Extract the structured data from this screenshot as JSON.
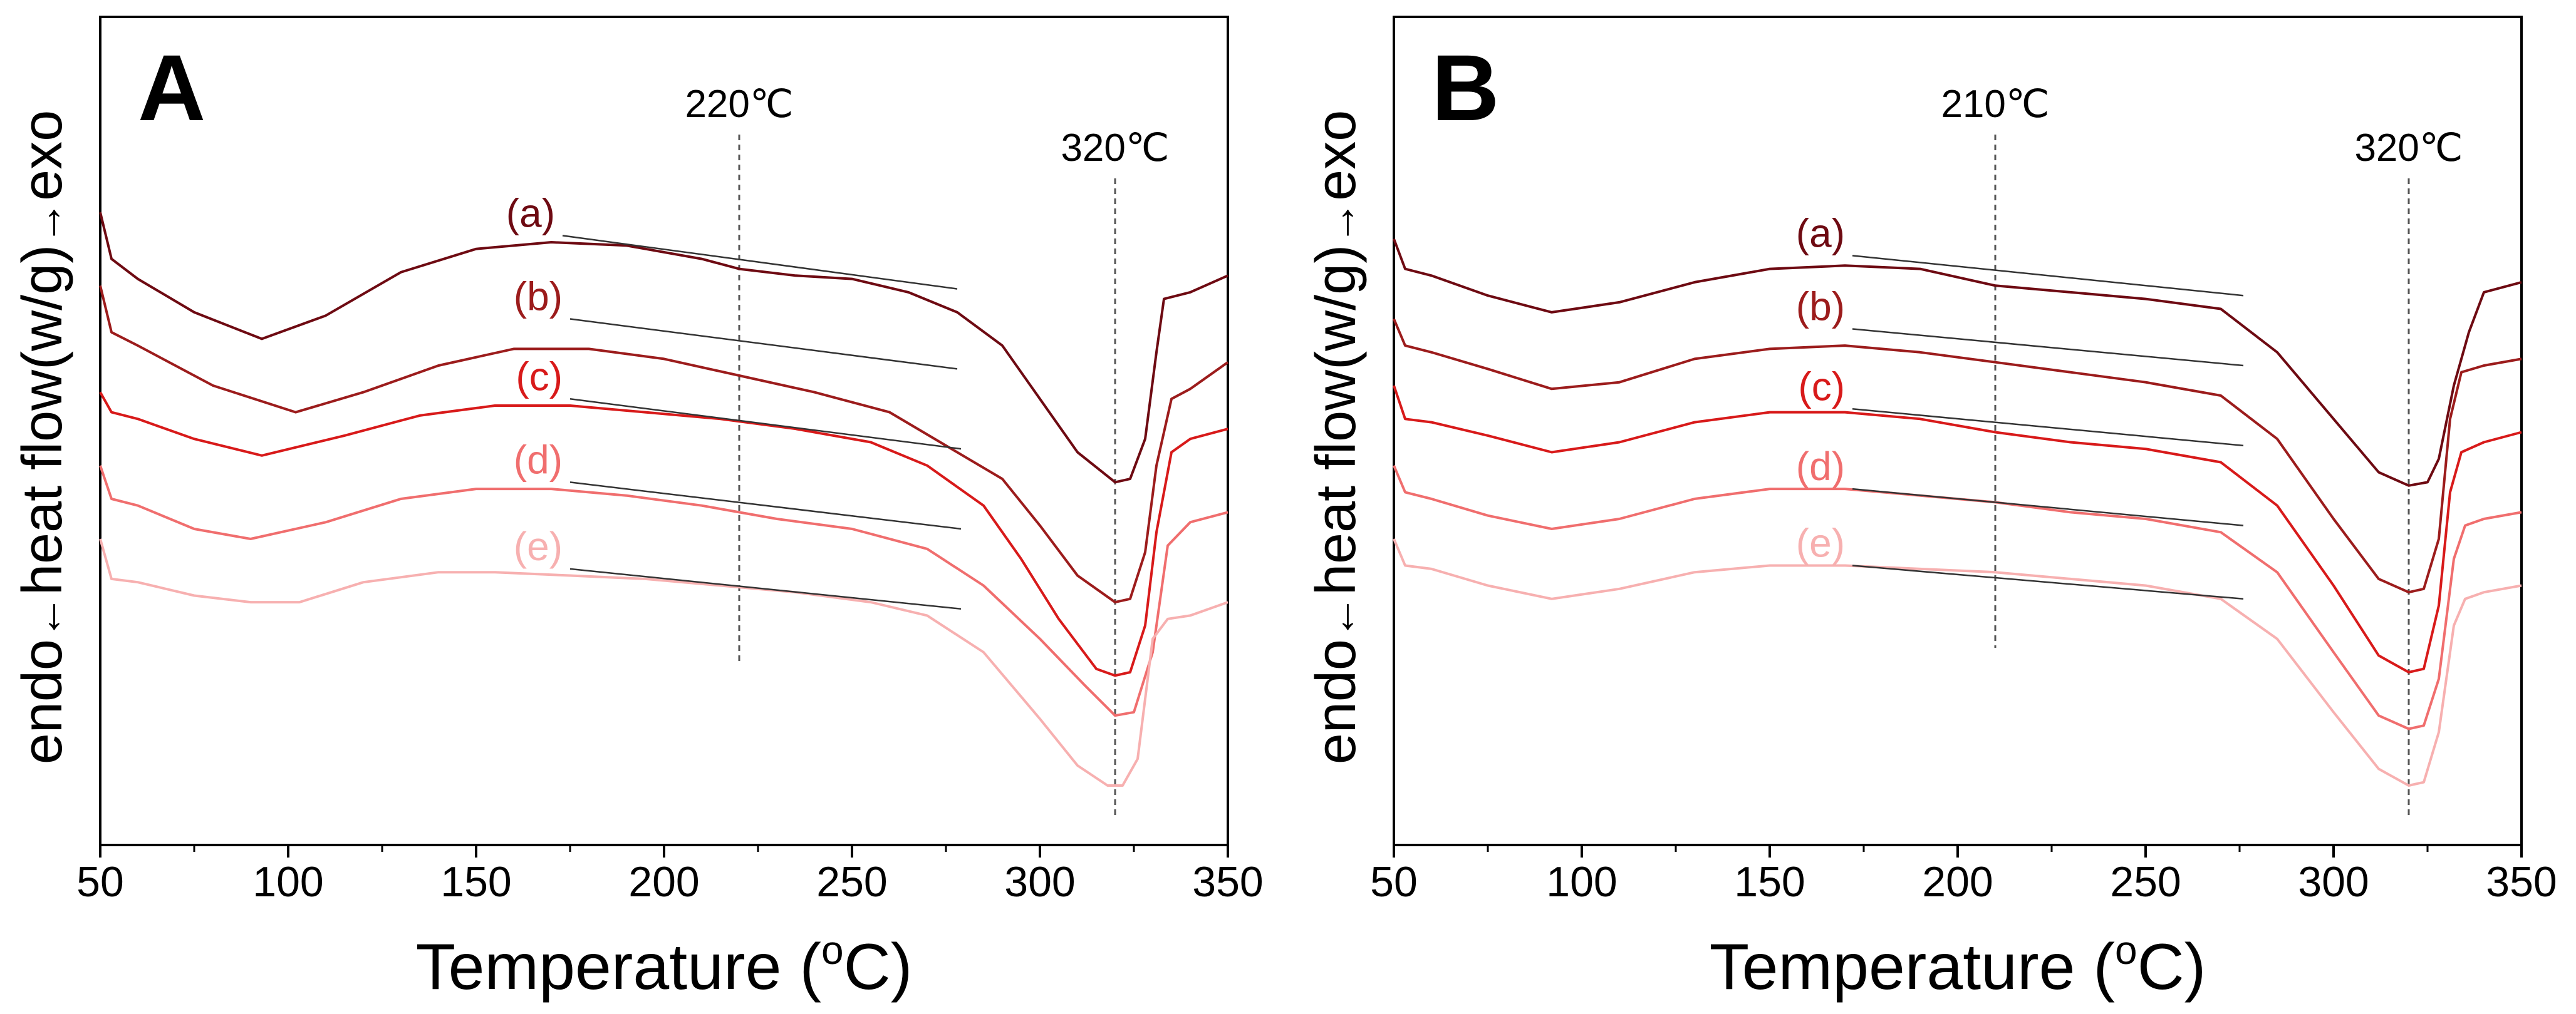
{
  "chart_data": [
    {
      "type": "line",
      "panel_label": "A",
      "xlabel": "Temperature (",
      "xlabel_sup": "o",
      "xlabel_tail": "C)",
      "ylabel": "endo←heat flow(w/g)→exo",
      "ylabel_parts": {
        "endo": "endo",
        "mid": "heat flow(w/g)",
        "exo": "exo"
      },
      "xlim": [
        50,
        350
      ],
      "xticks": [
        50,
        100,
        150,
        200,
        250,
        300,
        350
      ],
      "xtick_labels": [
        "50",
        "100",
        "150",
        "200",
        "250",
        "300",
        "350"
      ],
      "y_units": "arbitrary (stacked, offset)",
      "ylim": [
        0,
        100
      ],
      "grid": false,
      "legend": "inline series labels near x≈170",
      "markers": [
        {
          "x": 220,
          "label": "220℃"
        },
        {
          "x": 320,
          "label": "320℃"
        }
      ],
      "series": [
        {
          "name": "(a)",
          "color": "#6e0a12",
          "x": [
            50,
            53,
            60,
            75,
            93,
            110,
            130,
            150,
            170,
            190,
            210,
            220,
            235,
            250,
            265,
            278,
            290,
            300,
            310,
            320,
            324,
            328,
            331,
            333,
            340,
            350
          ],
          "y": [
            86,
            79,
            76,
            71,
            67,
            70.5,
            77,
            80.5,
            81.5,
            81,
            79,
            77.5,
            76.5,
            76,
            74,
            71,
            66,
            58,
            50,
            45.5,
            46,
            52,
            65,
            73,
            74,
            76.5
          ],
          "baseline": {
            "x": [
              173,
              278
            ],
            "y": [
              82.5,
              74.5
            ]
          }
        },
        {
          "name": "(b)",
          "color": "#9c1c1c",
          "x": [
            50,
            53,
            60,
            80,
            102,
            120,
            140,
            160,
            180,
            200,
            220,
            240,
            260,
            275,
            290,
            300,
            310,
            320,
            324,
            328,
            331,
            335,
            340,
            350
          ],
          "y": [
            75,
            68,
            66,
            60,
            56,
            59,
            63,
            65.5,
            65.5,
            64,
            61.5,
            59,
            56,
            51,
            46,
            39,
            31.5,
            27.5,
            28,
            35,
            48,
            58,
            59.5,
            63.5
          ],
          "baseline": {
            "x": [
              175,
              278
            ],
            "y": [
              70,
              62.5
            ]
          }
        },
        {
          "name": "(c)",
          "color": "#d81a1a",
          "x": [
            50,
            53,
            60,
            75,
            93,
            115,
            135,
            155,
            175,
            195,
            215,
            235,
            255,
            270,
            285,
            295,
            305,
            315,
            320,
            324,
            328,
            331,
            335,
            340,
            350
          ],
          "y": [
            59,
            56,
            55,
            52,
            49.5,
            52.5,
            55.5,
            57,
            57,
            56,
            55,
            53.5,
            51.5,
            48,
            42,
            34,
            25,
            17.5,
            16.5,
            17,
            24,
            38,
            50,
            52,
            53.5
          ],
          "baseline": {
            "x": [
              175,
              279
            ],
            "y": [
              58,
              50.5
            ]
          }
        },
        {
          "name": "(d)",
          "color": "#f06e6e",
          "x": [
            50,
            53,
            60,
            75,
            90,
            110,
            130,
            150,
            170,
            190,
            210,
            230,
            250,
            270,
            285,
            300,
            312,
            320,
            325,
            330,
            334,
            340,
            350
          ],
          "y": [
            48,
            43,
            42,
            38.5,
            37,
            39.5,
            43,
            44.5,
            44.5,
            43.5,
            42,
            40,
            38.5,
            35.5,
            30,
            22,
            15,
            10.5,
            11,
            20,
            36,
            39.5,
            41
          ],
          "baseline": {
            "x": [
              175,
              279
            ],
            "y": [
              45.5,
              38.5
            ]
          }
        },
        {
          "name": "(e)",
          "color": "#f7b0b0",
          "x": [
            50,
            53,
            60,
            75,
            90,
            103,
            120,
            140,
            155,
            175,
            195,
            215,
            235,
            255,
            270,
            285,
            300,
            310,
            318,
            322,
            326,
            330,
            334,
            340,
            350
          ],
          "y": [
            37,
            31,
            30.5,
            28.5,
            27.5,
            27.5,
            30.5,
            32,
            32,
            31.5,
            31,
            30,
            29,
            27.5,
            25.5,
            20,
            10,
            3,
            0,
            0,
            4,
            22,
            25,
            25.5,
            27.5
          ],
          "baseline": {
            "x": [
              175,
              279
            ],
            "y": [
              32.5,
              26.5
            ]
          }
        }
      ]
    },
    {
      "type": "line",
      "panel_label": "B",
      "xlabel": "Temperature (",
      "xlabel_sup": "o",
      "xlabel_tail": "C)",
      "ylabel": "endo←heat flow(w/g)→exo",
      "ylabel_parts": {
        "endo": "endo",
        "mid": "heat flow(w/g)",
        "exo": "exo"
      },
      "xlim": [
        50,
        350
      ],
      "xticks": [
        50,
        100,
        150,
        200,
        250,
        300,
        350
      ],
      "xtick_labels": [
        "50",
        "100",
        "150",
        "200",
        "250",
        "300",
        "350"
      ],
      "y_units": "arbitrary (stacked, offset)",
      "ylim": [
        0,
        100
      ],
      "grid": false,
      "legend": "inline series labels near x≈170",
      "markers": [
        {
          "x": 210,
          "label": "210℃"
        },
        {
          "x": 320,
          "label": "320℃"
        }
      ],
      "series": [
        {
          "name": "(a)",
          "color": "#6e0a12",
          "x": [
            50,
            53,
            60,
            75,
            92,
            110,
            130,
            150,
            170,
            190,
            210,
            230,
            250,
            270,
            285,
            300,
            312,
            320,
            325,
            328,
            332,
            336,
            340,
            350
          ],
          "y": [
            82,
            77.5,
            76.5,
            73.5,
            71,
            72.5,
            75.5,
            77.5,
            78,
            77.5,
            75,
            74,
            73,
            71.5,
            65,
            55,
            47,
            45,
            45.5,
            49,
            60,
            68,
            74,
            75.5
          ],
          "baseline": {
            "x": [
              172,
              276
            ],
            "y": [
              79.5,
              73.5
            ]
          }
        },
        {
          "name": "(b)",
          "color": "#9c1c1c",
          "x": [
            50,
            53,
            60,
            75,
            92,
            110,
            130,
            150,
            170,
            190,
            210,
            230,
            250,
            270,
            285,
            300,
            312,
            320,
            324,
            328,
            331,
            334,
            340,
            350
          ],
          "y": [
            70,
            66,
            65,
            62.5,
            59.5,
            60.5,
            64,
            65.5,
            66,
            65,
            63.5,
            62,
            60.5,
            58.5,
            52,
            40,
            31,
            29,
            29.5,
            37,
            55,
            62,
            63,
            64
          ],
          "baseline": {
            "x": [
              172,
              276
            ],
            "y": [
              68.5,
              63
            ]
          }
        },
        {
          "name": "(c)",
          "color": "#d81a1a",
          "x": [
            50,
            53,
            60,
            75,
            92,
            110,
            130,
            150,
            170,
            190,
            210,
            230,
            250,
            270,
            285,
            300,
            312,
            320,
            324,
            328,
            331,
            334,
            340,
            350
          ],
          "y": [
            60,
            55,
            54.5,
            52.5,
            50,
            51.5,
            54.5,
            56,
            56,
            55,
            53,
            51.5,
            50.5,
            48.5,
            42,
            30,
            19.5,
            17,
            17.5,
            27,
            44,
            50,
            51.5,
            53
          ],
          "baseline": {
            "x": [
              172,
              276
            ],
            "y": [
              56.5,
              51
            ]
          }
        },
        {
          "name": "(d)",
          "color": "#f06e6e",
          "x": [
            50,
            53,
            60,
            75,
            92,
            110,
            130,
            150,
            170,
            190,
            210,
            230,
            250,
            270,
            285,
            300,
            312,
            320,
            324,
            328,
            332,
            335,
            340,
            350
          ],
          "y": [
            48,
            44,
            43,
            40.5,
            38.5,
            40,
            43,
            44.5,
            44.5,
            43.5,
            42.5,
            41,
            40,
            38,
            32,
            20,
            10.5,
            8.5,
            9,
            16,
            34,
            39,
            40,
            41
          ],
          "baseline": {
            "x": [
              172,
              276
            ],
            "y": [
              44.5,
              39
            ]
          }
        },
        {
          "name": "(e)",
          "color": "#f7b0b0",
          "x": [
            50,
            53,
            60,
            75,
            92,
            110,
            130,
            150,
            170,
            190,
            210,
            230,
            250,
            270,
            285,
            300,
            312,
            320,
            324,
            328,
            332,
            335,
            340,
            350
          ],
          "y": [
            37,
            33,
            32.5,
            30,
            28,
            29.5,
            32,
            33,
            33,
            32.5,
            32,
            31,
            30,
            28,
            22,
            11,
            2.5,
            0,
            0.5,
            8,
            24,
            28,
            29,
            30
          ],
          "baseline": {
            "x": [
              172,
              276
            ],
            "y": [
              33,
              28
            ]
          }
        }
      ]
    }
  ]
}
